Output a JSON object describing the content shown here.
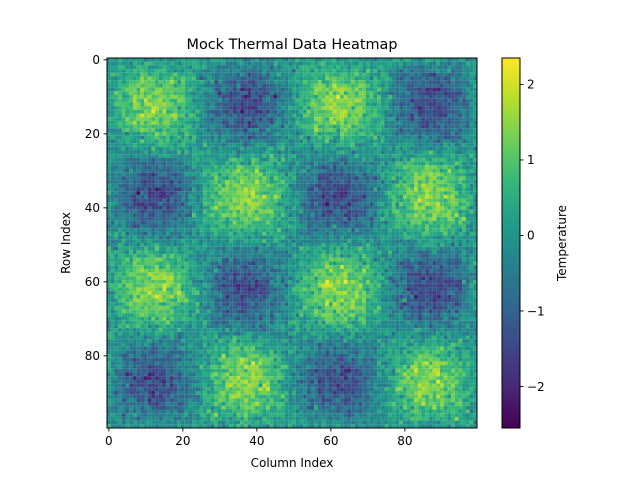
{
  "chart_data": {
    "type": "heatmap",
    "title": "Mock Thermal Data Heatmap",
    "xlabel": "Column Index",
    "ylabel": "Row Index",
    "rows": 100,
    "cols": 100,
    "x_ticks": [
      0,
      20,
      40,
      60,
      80
    ],
    "y_ticks": [
      0,
      20,
      40,
      60,
      80
    ],
    "colorbar": {
      "label": "Temperature",
      "range": [
        -2.55,
        2.35
      ],
      "ticks": [
        2,
        1,
        0,
        -1,
        -2
      ],
      "tick_labels": [
        "2",
        "1",
        "0",
        "−1",
        "−2"
      ]
    },
    "colormap": "viridis",
    "colormap_stops": [
      "#440154",
      "#482878",
      "#3e4989",
      "#31688e",
      "#26828e",
      "#1f9e89",
      "#35b779",
      "#6ece58",
      "#b5de2b",
      "#fde725"
    ],
    "pattern": "sin(2π·col/50)·sin(2π·row/50) + noise",
    "noise_amplitude": 0.35
  }
}
